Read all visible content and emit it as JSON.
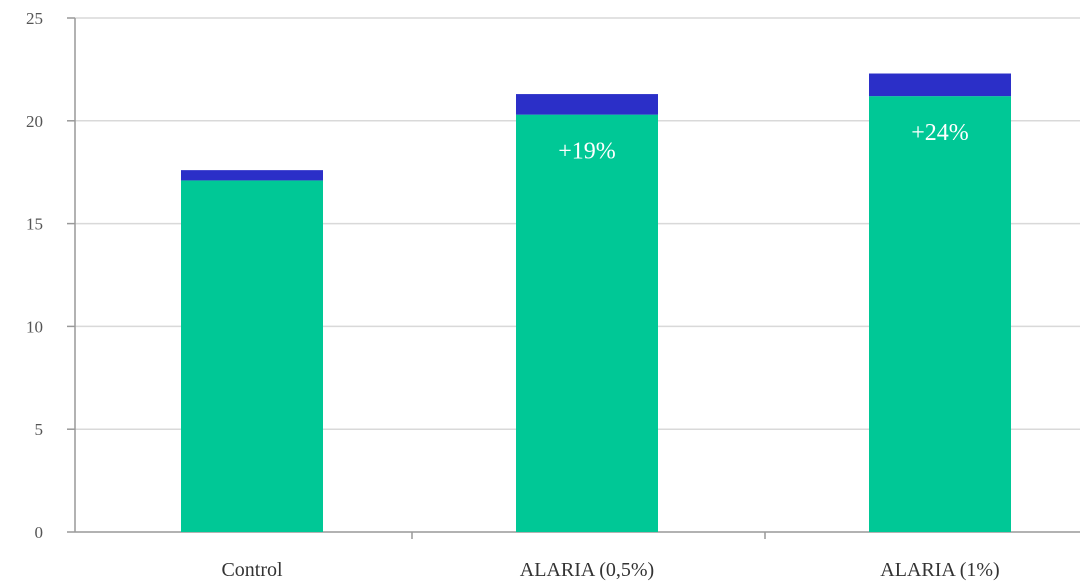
{
  "chart_data": {
    "type": "bar",
    "stacked": true,
    "categories": [
      "Control",
      "ALARIA (0,5%)",
      "ALARIA (1%)"
    ],
    "series": [
      {
        "color": "#00c896",
        "values": [
          17.1,
          20.3,
          21.2
        ]
      },
      {
        "color": "#2b2fc8",
        "values": [
          0.5,
          1.0,
          1.1
        ]
      }
    ],
    "ylim": [
      0,
      25
    ],
    "yticks": [
      0,
      5,
      10,
      15,
      20,
      25
    ],
    "ytick_labels": [
      "0",
      "5",
      "10",
      "15",
      "20",
      "25"
    ],
    "data_labels": [
      "",
      "+19%",
      "+24%"
    ],
    "title": "",
    "xlabel": "",
    "ylabel": "",
    "grid": true,
    "colors": {
      "grid": "#d9d9d9",
      "axis": "#999999"
    }
  }
}
